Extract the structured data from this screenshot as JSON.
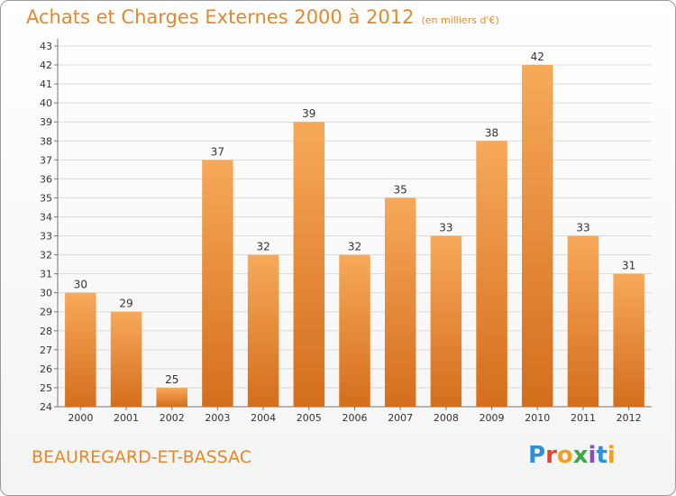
{
  "header": {
    "title": "Achats et Charges Externes 2000 à 2012",
    "unit": "(en milliers d'€)"
  },
  "footer": {
    "place": "BEAUREGARD-ET-BASSAC",
    "logo": "Proxiti"
  },
  "colors": {
    "bar_top": "#f7a95a",
    "bar_bottom": "#d46e1c",
    "text_accent": "#e3892b",
    "grid": "#d9d9d9"
  },
  "chart_data": {
    "type": "bar",
    "categories": [
      "2000",
      "2001",
      "2002",
      "2003",
      "2004",
      "2005",
      "2006",
      "2007",
      "2008",
      "2009",
      "2010",
      "2011",
      "2012"
    ],
    "values": [
      30,
      29,
      25,
      37,
      32,
      39,
      32,
      35,
      33,
      38,
      42,
      33,
      31
    ],
    "title": "Achats et Charges Externes 2000 à 2012",
    "ylabel": "",
    "xlabel": "",
    "ylim": [
      24,
      43
    ],
    "yticks": [
      24,
      25,
      26,
      27,
      28,
      29,
      30,
      31,
      32,
      33,
      34,
      35,
      36,
      37,
      38,
      39,
      40,
      41,
      42,
      43
    ],
    "grid": true,
    "data_labels": true
  }
}
